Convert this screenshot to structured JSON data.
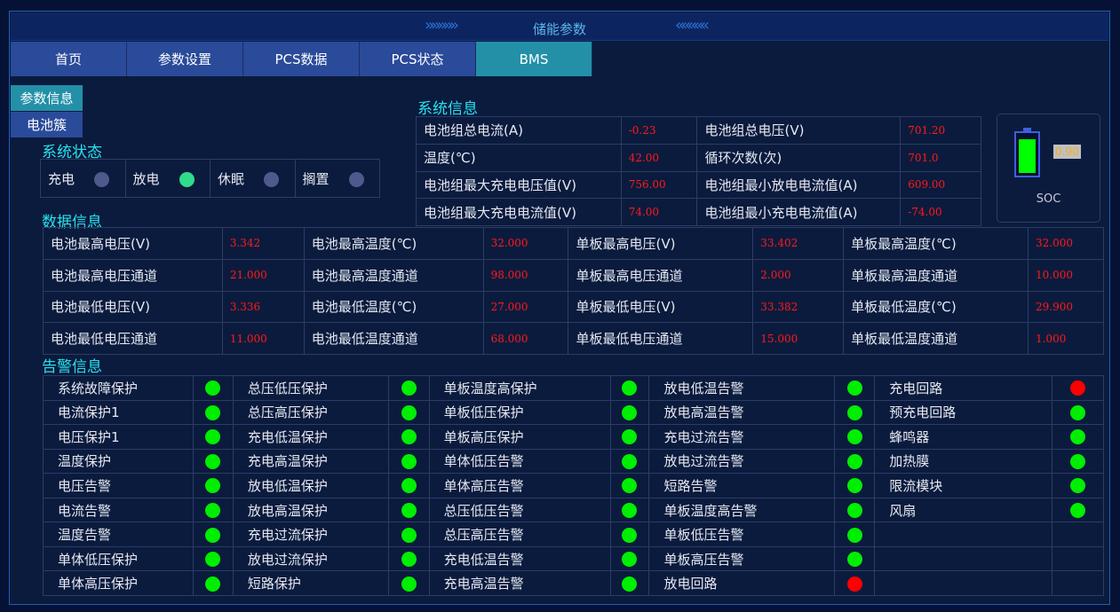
{
  "header": {
    "title": "储能参数"
  },
  "tabs": [
    {
      "label": "首页"
    },
    {
      "label": "参数设置"
    },
    {
      "label": "PCS数据"
    },
    {
      "label": "PCS状态"
    },
    {
      "label": "BMS",
      "active": true
    }
  ],
  "side_tabs": [
    {
      "label": "参数信息",
      "active": true
    },
    {
      "label": "电池簇"
    }
  ],
  "system_status": {
    "title": "系统状态",
    "items": [
      {
        "label": "充电",
        "active": false
      },
      {
        "label": "放电",
        "active": true
      },
      {
        "label": "休眠",
        "active": false
      },
      {
        "label": "搁置",
        "active": false
      }
    ]
  },
  "system_info": {
    "title": "系统信息",
    "rows": [
      [
        "电池组总电流(A)",
        "-0.23",
        "电池组总电压(V)",
        "701.20"
      ],
      [
        "温度(℃)",
        "42.00",
        "循环次数(次)",
        "701.0"
      ],
      [
        "电池组最大充电电压值(V)",
        "756.00",
        "电池组最小放电电流值(A)",
        "609.00"
      ],
      [
        "电池组最大充电电流值(V)",
        "74.00",
        "电池组最小充电电流值(A)",
        "-74.00"
      ]
    ]
  },
  "soc": {
    "label": "SOC",
    "value": "0.90",
    "level": 0.9
  },
  "data_info": {
    "title": "数据信息",
    "rows": [
      [
        "电池最高电压(V)",
        "3.342",
        "电池最高温度(℃)",
        "32.000",
        "单板最高电压(V)",
        "33.402",
        "单板最高温度(℃)",
        "32.000"
      ],
      [
        "电池最高电压通道",
        "21.000",
        "电池最高温度通道",
        "98.000",
        "单板最高电压通道",
        "2.000",
        "单板最高温度通道",
        "10.000"
      ],
      [
        "电池最低电压(V)",
        "3.336",
        "电池最低温度(℃)",
        "27.000",
        "单板最低电压(V)",
        "33.382",
        "单板最低温度(℃)",
        "29.900"
      ],
      [
        "电池最低电压通道",
        "11.000",
        "电池最低温度通道",
        "68.000",
        "单板最低电压通道",
        "15.000",
        "单板最低温度通道",
        "1.000"
      ]
    ]
  },
  "alarm_info": {
    "title": "告警信息",
    "columns": [
      [
        [
          "系统故障保护",
          "green"
        ],
        [
          "电流保护1",
          "green"
        ],
        [
          "电压保护1",
          "green"
        ],
        [
          "温度保护",
          "green"
        ],
        [
          "电压告警",
          "green"
        ],
        [
          "电流告警",
          "green"
        ],
        [
          "温度告警",
          "green"
        ],
        [
          "单体低压保护",
          "green"
        ],
        [
          "单体高压保护",
          "green"
        ]
      ],
      [
        [
          "总压低压保护",
          "green"
        ],
        [
          "总压高压保护",
          "green"
        ],
        [
          "充电低温保护",
          "green"
        ],
        [
          "充电高温保护",
          "green"
        ],
        [
          "放电低温保护",
          "green"
        ],
        [
          "放电高温保护",
          "green"
        ],
        [
          "充电过流保护",
          "green"
        ],
        [
          "放电过流保护",
          "green"
        ],
        [
          "短路保护",
          "green"
        ]
      ],
      [
        [
          "单板温度高保护",
          "green"
        ],
        [
          "单板低压保护",
          "green"
        ],
        [
          "单板高压保护",
          "green"
        ],
        [
          "单体低压告警",
          "green"
        ],
        [
          "单体高压告警",
          "green"
        ],
        [
          "总压低压告警",
          "green"
        ],
        [
          "总压高压告警",
          "green"
        ],
        [
          "充电低温告警",
          "green"
        ],
        [
          "充电高温告警",
          "green"
        ]
      ],
      [
        [
          "放电低温告警",
          "green"
        ],
        [
          "放电高温告警",
          "green"
        ],
        [
          "充电过流告警",
          "green"
        ],
        [
          "放电过流告警",
          "green"
        ],
        [
          "短路告警",
          "green"
        ],
        [
          "单板温度高告警",
          "green"
        ],
        [
          "单板低压告警",
          "green"
        ],
        [
          "单板高压告警",
          "green"
        ],
        [
          "放电回路",
          "red"
        ]
      ],
      [
        [
          "充电回路",
          "red"
        ],
        [
          "预充电回路",
          "green"
        ],
        [
          "蜂鸣器",
          "green"
        ],
        [
          "加热膜",
          "green"
        ],
        [
          "限流模块",
          "green"
        ],
        [
          "风扇",
          "green"
        ]
      ]
    ]
  },
  "colors": {
    "green": "#00ee00",
    "red": "#ff0000",
    "status_on": "#2fdc8c",
    "status_off": "#4e5a8c",
    "accent": "#27e2ee"
  }
}
